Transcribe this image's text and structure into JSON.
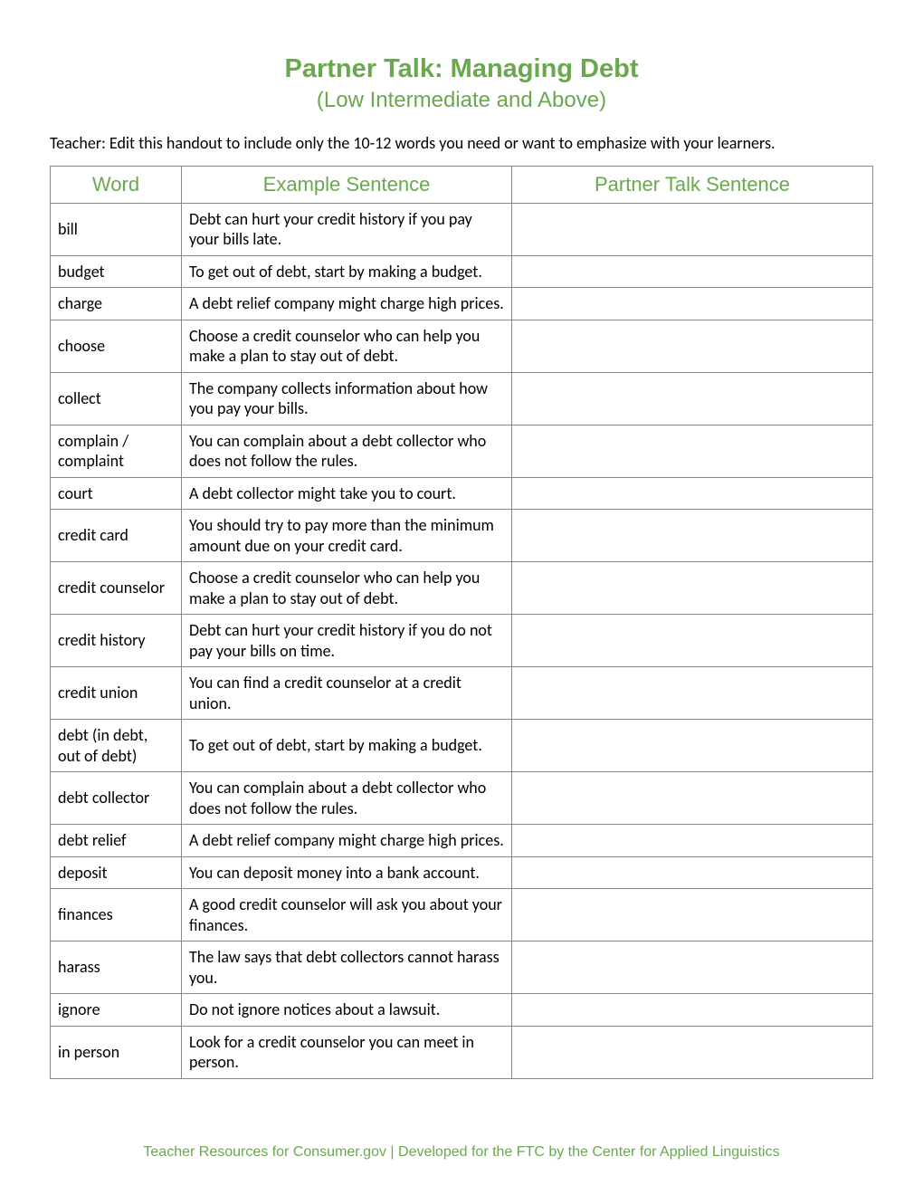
{
  "colors": {
    "accent": "#6aa84f",
    "text": "#000000",
    "border": "#888888",
    "background": "#ffffff"
  },
  "title": "Partner Talk: Managing Debt",
  "subtitle": "(Low Intermediate and Above)",
  "instruction": "Teacher: Edit this handout to include only the 10-12 words you need or want to emphasize with your learners.",
  "table": {
    "columns": [
      "Word",
      "Example Sentence",
      "Partner Talk Sentence"
    ],
    "rows": [
      {
        "word": "bill",
        "example": "Debt can hurt your credit history if you pay your bills late.",
        "partner": ""
      },
      {
        "word": "budget",
        "example": "To get out of debt, start by making a budget.",
        "partner": ""
      },
      {
        "word": "charge",
        "example": "A debt relief company might charge high prices.",
        "partner": ""
      },
      {
        "word": "choose",
        "example": "Choose a credit counselor who can help you make a plan to stay out of debt.",
        "partner": ""
      },
      {
        "word": "collect",
        "example": "The company collects information about how you pay your bills.",
        "partner": ""
      },
      {
        "word": "complain / complaint",
        "example": "You can complain about a debt collector who does not follow the rules.",
        "partner": ""
      },
      {
        "word": "court",
        "example": "A debt collector might take you to court.",
        "partner": ""
      },
      {
        "word": "credit card",
        "example": "You should try to pay more than the minimum amount due on your credit card.",
        "partner": ""
      },
      {
        "word": "credit counselor",
        "example": "Choose a credit counselor who can help you make a plan to stay out of debt.",
        "partner": ""
      },
      {
        "word": "credit history",
        "example": "Debt can hurt your credit history if you do not pay your bills on time.",
        "partner": ""
      },
      {
        "word": "credit union",
        "example": "You can find a credit counselor at a credit union.",
        "partner": ""
      },
      {
        "word": "debt (in debt, out of debt)",
        "example": "To get out of debt, start by making a budget.",
        "partner": ""
      },
      {
        "word": "debt collector",
        "example": "You can complain about a debt collector who does not follow the rules.",
        "partner": ""
      },
      {
        "word": "debt relief",
        "example": "A debt relief company might charge high prices.",
        "partner": ""
      },
      {
        "word": "deposit",
        "example": "You can deposit money into a bank account.",
        "partner": ""
      },
      {
        "word": "finances",
        "example": "A good credit counselor will ask you about your finances.",
        "partner": ""
      },
      {
        "word": "harass",
        "example": "The law says that debt collectors cannot harass you.",
        "partner": ""
      },
      {
        "word": "ignore",
        "example": "Do not ignore notices about a lawsuit.",
        "partner": ""
      },
      {
        "word": "in person",
        "example": "Look for a credit counselor you can meet in person.",
        "partner": ""
      }
    ]
  },
  "footer": "Teacher Resources for Consumer.gov | Developed for the FTC by the Center for Applied Linguistics"
}
